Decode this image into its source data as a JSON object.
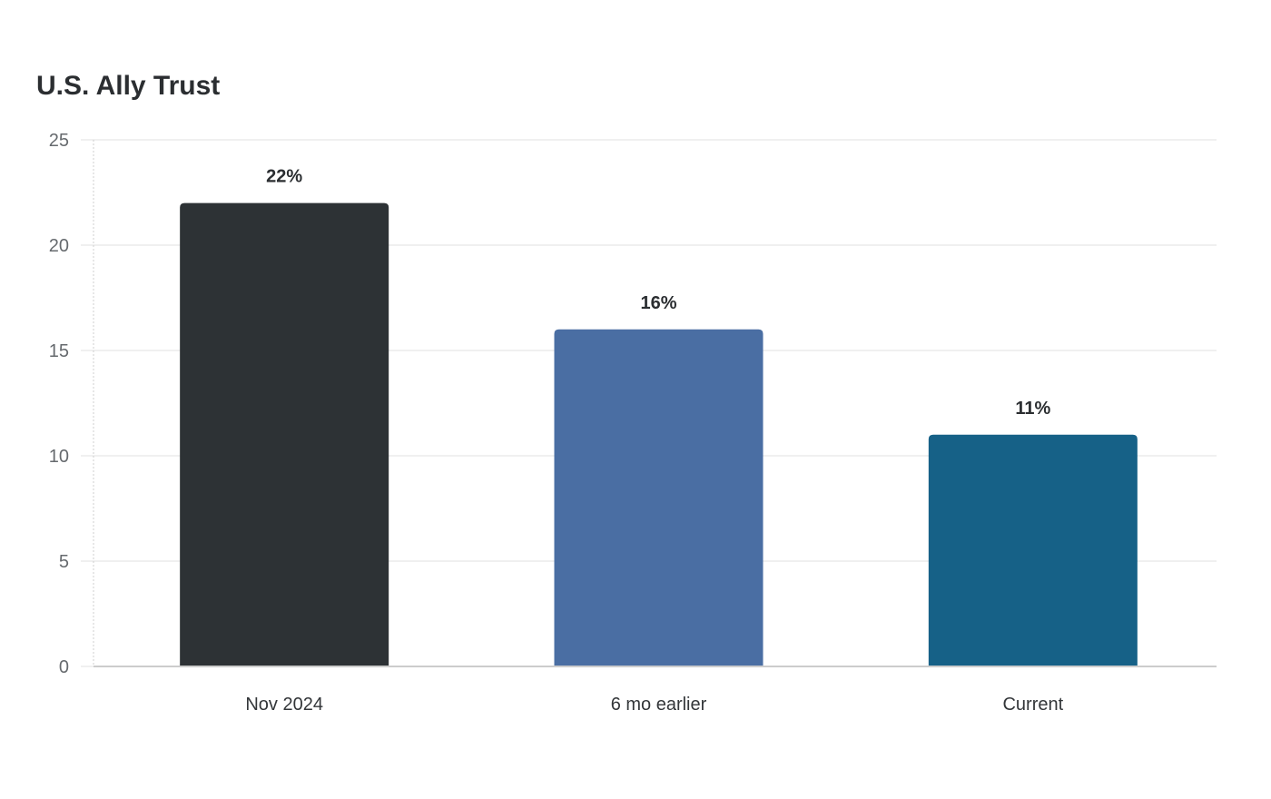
{
  "chart_data": {
    "type": "bar",
    "title": "U.S. Ally Trust",
    "categories": [
      "Nov 2024",
      "6 mo earlier",
      "Current"
    ],
    "values": [
      22,
      16,
      11
    ],
    "value_labels": [
      "22%",
      "16%",
      "11%"
    ],
    "bar_colors": [
      "#2d3235",
      "#4a6ea3",
      "#166187"
    ],
    "xlabel": "",
    "ylabel": "",
    "ylim": [
      0,
      25
    ],
    "yticks": [
      0,
      5,
      10,
      15,
      20,
      25
    ],
    "grid": true,
    "legend": "none"
  }
}
